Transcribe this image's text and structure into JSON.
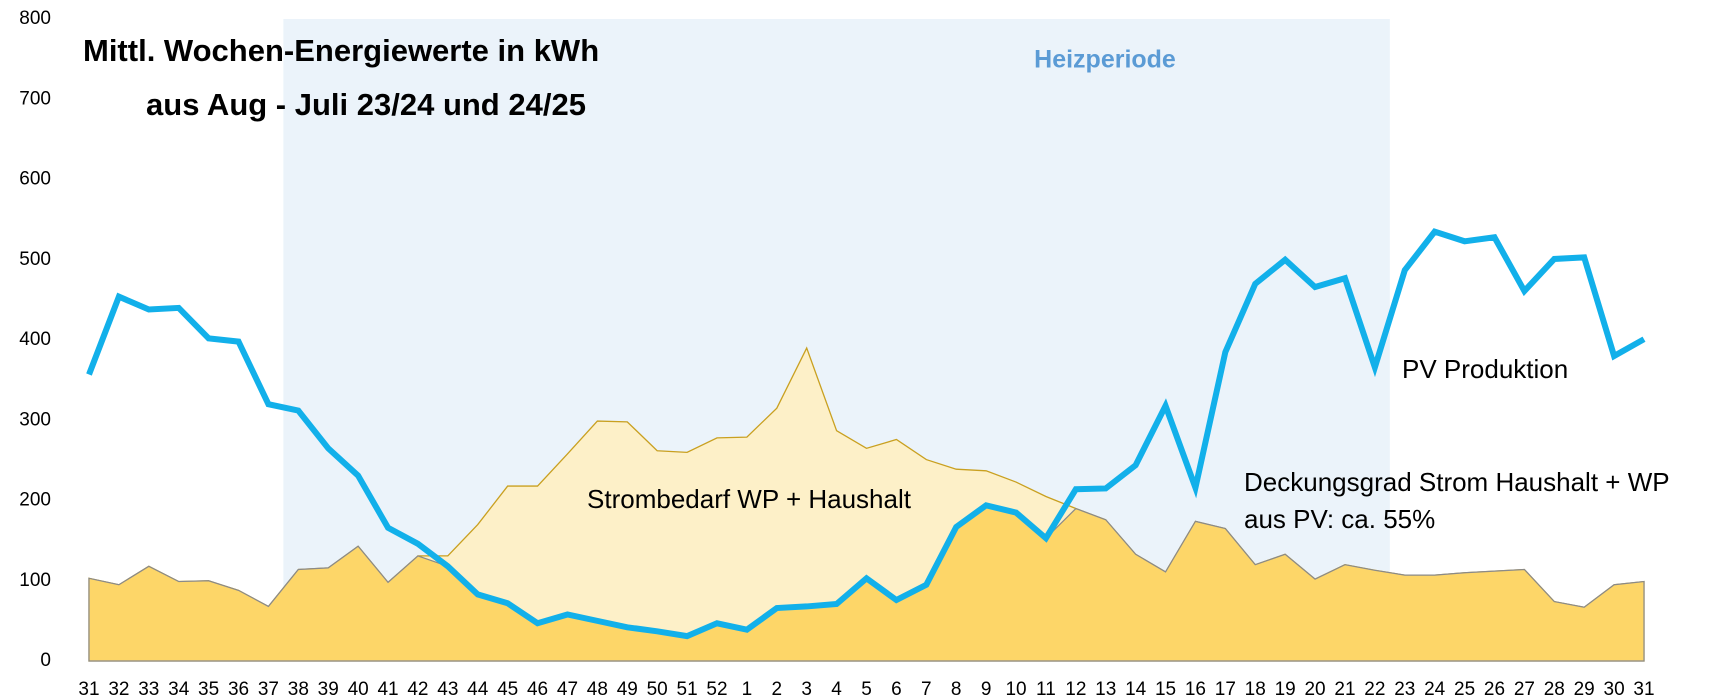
{
  "chart_data": {
    "type": "line",
    "title": "Mittl. Wochen-Energiewerte in kWh",
    "subtitle": "aus Aug - Juli 23/24 und 24/25",
    "categories": [
      "31",
      "32",
      "33",
      "34",
      "35",
      "36",
      "37",
      "38",
      "39",
      "40",
      "41",
      "42",
      "43",
      "44",
      "45",
      "46",
      "47",
      "48",
      "49",
      "50",
      "51",
      "52",
      "1",
      "2",
      "3",
      "4",
      "5",
      "6",
      "7",
      "8",
      "9",
      "10",
      "11",
      "12",
      "13",
      "14",
      "15",
      "16",
      "17",
      "18",
      "19",
      "20",
      "21",
      "22",
      "23",
      "24",
      "25",
      "26",
      "27",
      "28",
      "29",
      "30",
      "31"
    ],
    "series": [
      {
        "name": "Strombedarf WP + Haushalt",
        "type": "area",
        "color": "#fdf0c8",
        "values": [
          103,
          95,
          118,
          99,
          100,
          88,
          68,
          114,
          116,
          143,
          98,
          131,
          131,
          170,
          218,
          218,
          258,
          299,
          298,
          262,
          260,
          278,
          279,
          315,
          390,
          287,
          265,
          276,
          251,
          239,
          237,
          223,
          205,
          190,
          176,
          133,
          111,
          174,
          165,
          120,
          133,
          102,
          120,
          113,
          107,
          107,
          110,
          112,
          114,
          74,
          67,
          95,
          99
        ]
      },
      {
        "name": "PV Produktion",
        "type": "line",
        "color": "#12b0ea",
        "values": [
          357,
          454,
          438,
          440,
          402,
          398,
          320,
          312,
          265,
          231,
          166,
          146,
          118,
          83,
          72,
          47,
          58,
          50,
          42,
          37,
          31,
          47,
          39,
          66,
          68,
          71,
          103,
          76,
          95,
          167,
          194,
          185,
          153,
          214,
          215,
          244,
          318,
          216,
          385,
          470,
          500,
          466,
          477,
          366,
          487,
          535,
          523,
          528,
          461,
          501,
          503,
          380,
          401
        ]
      }
    ],
    "coverage_color": "#fdd668",
    "band": {
      "label": "Heizperiode",
      "from": "38",
      "to": "22",
      "color": "#ebf3fa"
    },
    "annotation": [
      "Deckungsgrad Strom Haushalt + WP",
      "aus PV:  ca. 55%"
    ],
    "ylim": [
      0,
      800
    ],
    "yticks": [
      0,
      100,
      200,
      300,
      400,
      500,
      600,
      700,
      800
    ],
    "grid": false
  }
}
